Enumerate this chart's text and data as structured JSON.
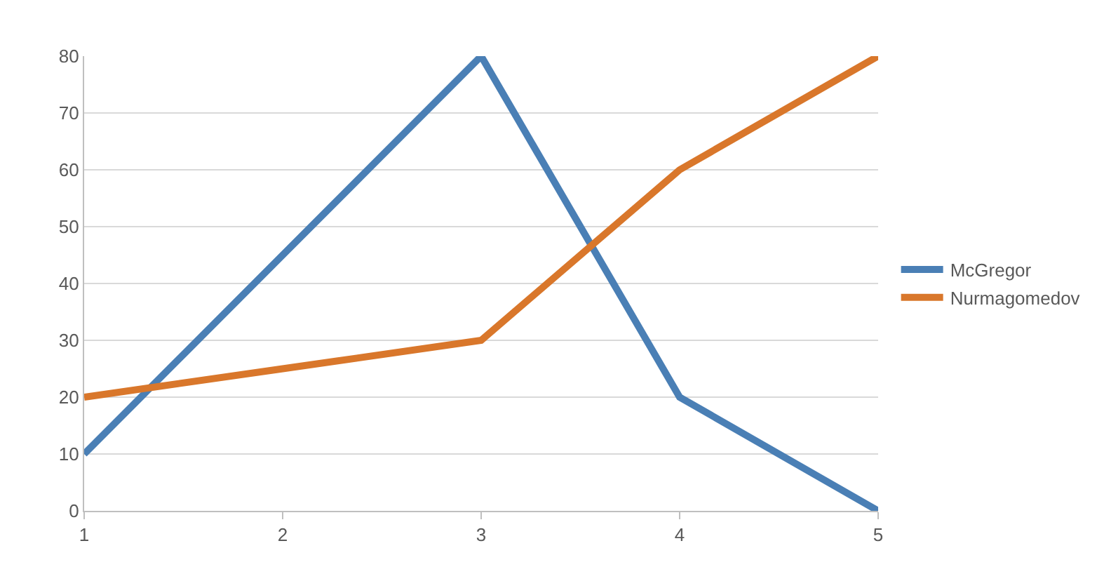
{
  "chart_data": {
    "type": "line",
    "categories": [
      "1",
      "2",
      "3",
      "4",
      "5"
    ],
    "series": [
      {
        "name": "McGregor",
        "color": "#4a7fb5",
        "values": [
          10,
          45,
          80,
          20,
          0
        ]
      },
      {
        "name": "Nurmagomedov",
        "color": "#d9772b",
        "values": [
          20,
          25,
          30,
          60,
          80
        ]
      }
    ],
    "ylim": [
      0,
      80
    ],
    "yticks": [
      0,
      10,
      20,
      30,
      40,
      50,
      60,
      70,
      80
    ],
    "grid": "y",
    "legend": "right",
    "marker": "none",
    "line_style": "solid"
  }
}
